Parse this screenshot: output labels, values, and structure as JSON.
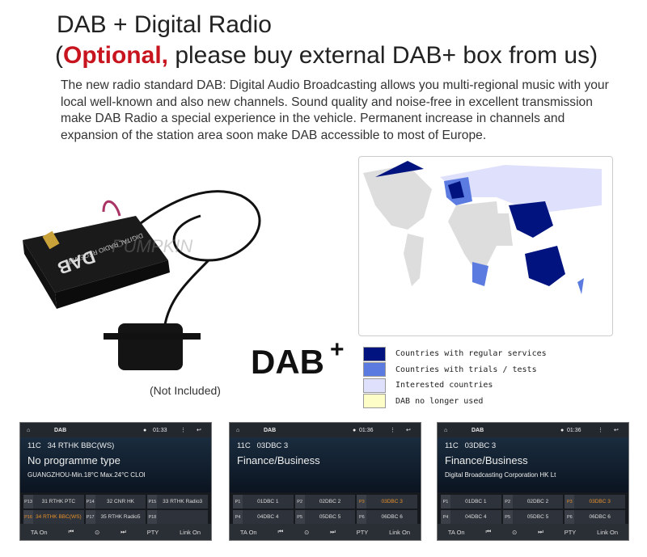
{
  "header": {
    "title": "DAB + Digital Radio",
    "sub_open": "(",
    "sub_highlight": "Optional,",
    "sub_rest": " please buy external DAB+ box from us)"
  },
  "description": "The new radio standard DAB: Digital Audio Broadcasting allows you multi-regional music with your local well-known and also new channels. Sound quality and noise-free in excellent transmission make DAB Radio a special experience in the vehicle. Permanent increase in channels and expansion of the station area soon make DAB accessible to most of Europe.",
  "device": {
    "label": "DIGITAL RADIO RECEIVER",
    "model": "DAB",
    "watermark": "PUMPKIN",
    "note": "(Not Included)"
  },
  "logo": "DAB+",
  "legend": [
    {
      "label": "Countries with regular services",
      "color": "#00137f"
    },
    {
      "label": "Countries with trials / tests",
      "color": "#5b7be0"
    },
    {
      "label": "Interested countries",
      "color": "#dfe0fb"
    },
    {
      "label": "DAB no longer used",
      "color": "#fdfdc8"
    }
  ],
  "colors": {
    "accent": "#c8141e",
    "active_preset": "#e8912a"
  },
  "screens": [
    {
      "title": "DAB",
      "time": "01:33",
      "channel": "11C",
      "station": "34 RTHK BBC(WS)",
      "type": "No programme type",
      "text": "GUANGZHOU-Min.18°C Max.24°C CLOl",
      "presets": [
        {
          "n": "P13",
          "l": "31 RTHK PTC"
        },
        {
          "n": "P14",
          "l": "32 CNR HK"
        },
        {
          "n": "P15",
          "l": "33 RTHK Radio3"
        },
        {
          "n": "P16",
          "l": "34 RTHK BBC(WS)",
          "active": true
        },
        {
          "n": "P17",
          "l": "35 RTHK Radio5"
        },
        {
          "n": "P18",
          "l": ""
        }
      ],
      "bottom": [
        "TA On",
        "⏮",
        "⊙",
        "⏭",
        "PTY",
        "Link On"
      ]
    },
    {
      "title": "DAB",
      "time": "01:36",
      "channel": "11C",
      "station": "03DBC 3",
      "type": "Finance/Business",
      "text": "",
      "presets": [
        {
          "n": "P1",
          "l": "01DBC 1"
        },
        {
          "n": "P2",
          "l": "02DBC 2"
        },
        {
          "n": "P3",
          "l": "03DBC 3",
          "active": true
        },
        {
          "n": "P4",
          "l": "04DBC 4"
        },
        {
          "n": "P5",
          "l": "05DBC 5"
        },
        {
          "n": "P6",
          "l": "06DBC 6"
        }
      ],
      "bottom": [
        "TA On",
        "⏮",
        "⊙",
        "⏭",
        "PTY",
        "Link On"
      ]
    },
    {
      "title": "DAB",
      "time": "01:36",
      "channel": "11C",
      "station": "03DBC 3",
      "type": "Finance/Business",
      "text": "Digital Broadcasting Corporation HK Lt",
      "presets": [
        {
          "n": "P1",
          "l": "01DBC 1"
        },
        {
          "n": "P2",
          "l": "02DBC 2"
        },
        {
          "n": "P3",
          "l": "03DBC 3",
          "active": true
        },
        {
          "n": "P4",
          "l": "04DBC 4"
        },
        {
          "n": "P5",
          "l": "05DBC 5"
        },
        {
          "n": "P6",
          "l": "06DBC 6"
        }
      ],
      "bottom": [
        "TA On",
        "⏮",
        "⊙",
        "⏭",
        "PTY",
        "Link On"
      ]
    }
  ]
}
